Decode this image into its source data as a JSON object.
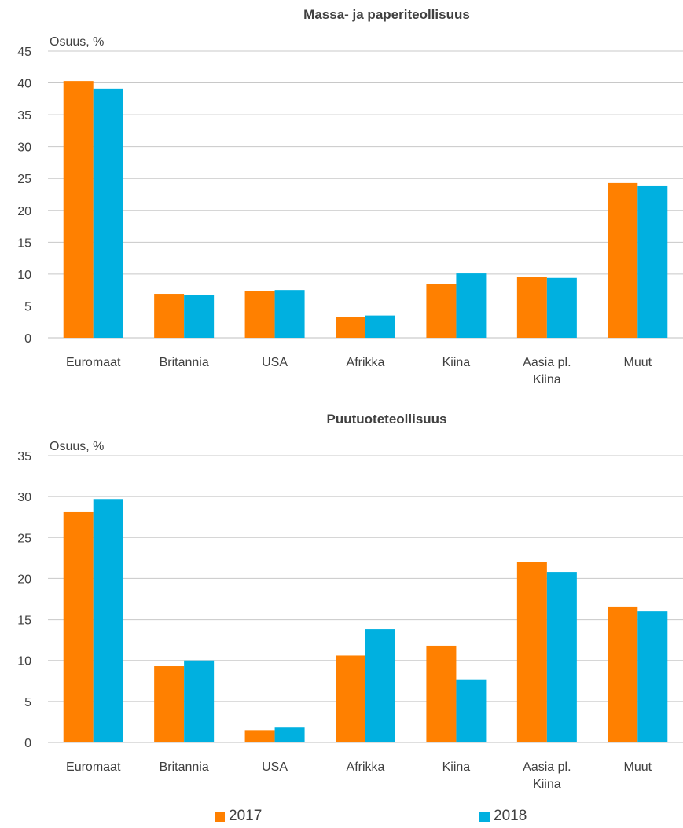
{
  "chart_data": [
    {
      "type": "bar",
      "title": "Massa- ja paperiteollisuus",
      "ylabel": "Osuus, %",
      "xlabel": "",
      "ylim": [
        0,
        45
      ],
      "yticks": [
        0,
        5,
        10,
        15,
        20,
        25,
        30,
        35,
        40,
        45
      ],
      "grid": true,
      "categories": [
        "Euromaat",
        "Britannia",
        "USA",
        "Afrikka",
        "Kiina",
        "Aasia pl.\nKiina",
        "Muut"
      ],
      "series": [
        {
          "name": "2017",
          "color": "#ff8000",
          "values": [
            40.3,
            6.9,
            7.3,
            3.3,
            8.5,
            9.5,
            24.3
          ]
        },
        {
          "name": "2018",
          "color": "#00b0e0",
          "values": [
            39.1,
            6.7,
            7.5,
            3.5,
            10.1,
            9.4,
            23.8
          ]
        }
      ]
    },
    {
      "type": "bar",
      "title": "Puutuoteteollisuus",
      "ylabel": "Osuus, %",
      "xlabel": "",
      "ylim": [
        0,
        35
      ],
      "yticks": [
        0,
        5,
        10,
        15,
        20,
        25,
        30,
        35
      ],
      "grid": true,
      "categories": [
        "Euromaat",
        "Britannia",
        "USA",
        "Afrikka",
        "Kiina",
        "Aasia pl.\nKiina",
        "Muut"
      ],
      "series": [
        {
          "name": "2017",
          "color": "#ff8000",
          "values": [
            28.1,
            9.3,
            1.5,
            10.6,
            11.8,
            22.0,
            16.5
          ]
        },
        {
          "name": "2018",
          "color": "#00b0e0",
          "values": [
            29.7,
            10.0,
            1.8,
            13.8,
            7.7,
            20.8,
            16.0
          ]
        }
      ]
    }
  ],
  "legend": {
    "position": "bottom",
    "items": [
      {
        "label": "2017",
        "color": "#ff8000"
      },
      {
        "label": "2018",
        "color": "#00b0e0"
      }
    ]
  }
}
